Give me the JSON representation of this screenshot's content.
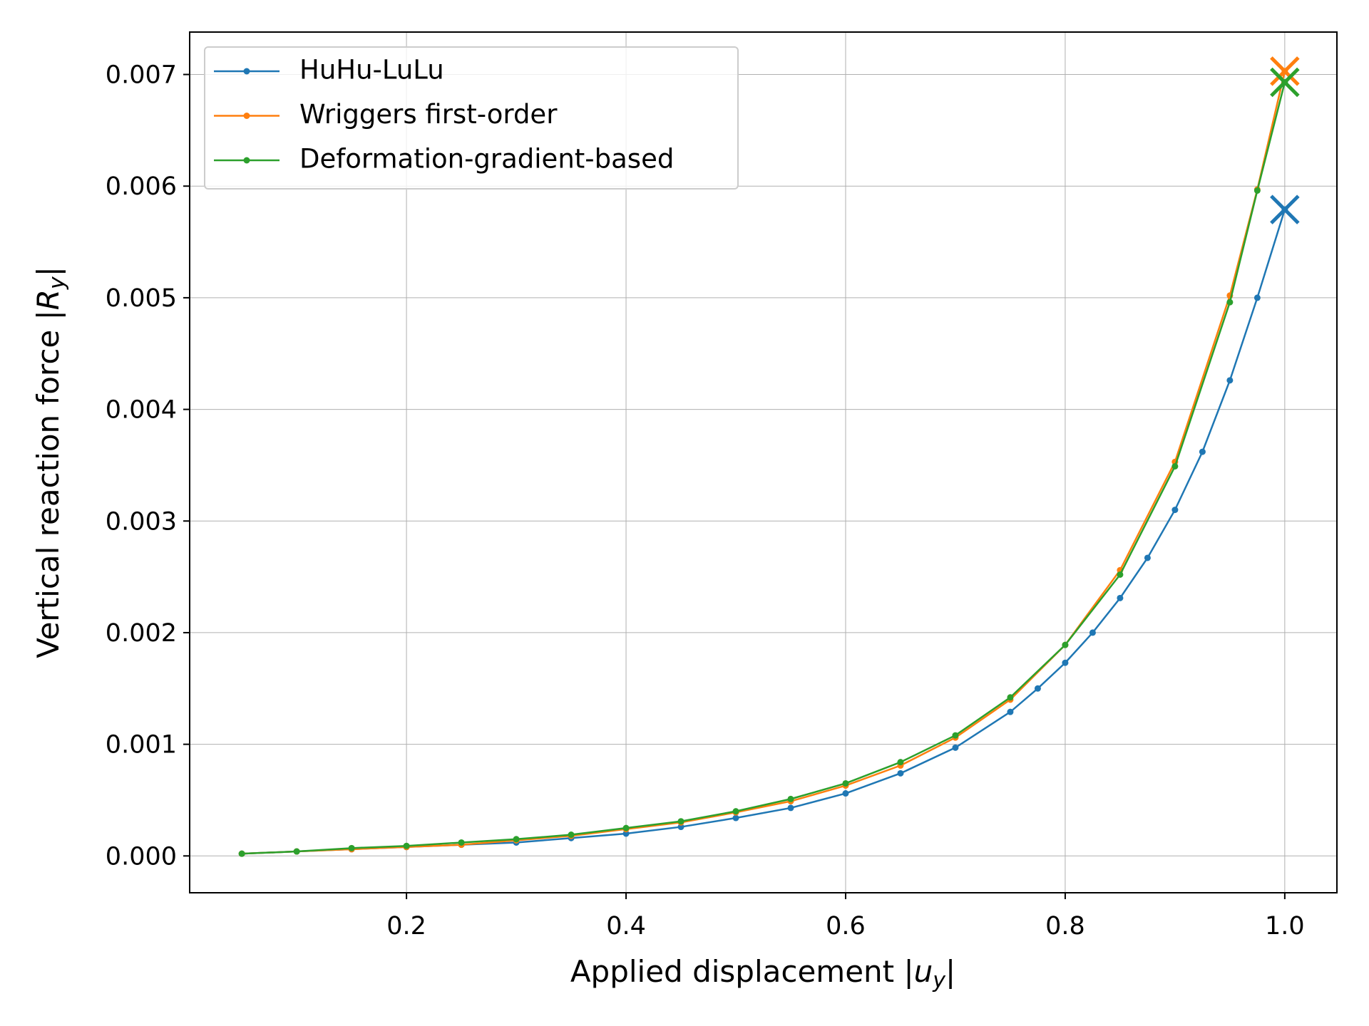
{
  "chart_data": {
    "type": "line",
    "xlabel": [
      "Applied displacement |",
      "u",
      "y",
      "|"
    ],
    "ylabel": [
      "Vertical reaction force |",
      "R",
      "y",
      "|"
    ],
    "xlim": [
      0.0025,
      1.0475
    ],
    "ylim": [
      -0.00033,
      0.00738
    ],
    "xticks": [
      0.2,
      0.4,
      0.6,
      0.8,
      {
        "value": 1,
        "label": "1.0"
      }
    ],
    "yticks": [
      {
        "value": 0,
        "label": "0.000"
      },
      0.001,
      0.002,
      0.003,
      0.004,
      0.005,
      0.006,
      0.007
    ],
    "grid": true,
    "legend": "upper left",
    "end_marker": "x",
    "series": [
      {
        "name": "HuHu-LuLu",
        "color": "#1f77b4",
        "x": [
          0.05,
          0.1,
          0.15,
          0.2,
          0.25,
          0.3,
          0.35,
          0.4,
          0.45,
          0.5,
          0.55,
          0.6,
          0.65,
          0.7,
          0.75,
          0.775,
          0.8,
          0.825,
          0.85,
          0.875,
          0.9,
          0.925,
          0.95,
          0.975,
          1.0
        ],
        "values": [
          2e-05,
          4e-05,
          6e-05,
          8e-05,
          0.0001,
          0.00012,
          0.00016,
          0.0002,
          0.00026,
          0.00034,
          0.00043,
          0.00056,
          0.00074,
          0.00097,
          0.00129,
          0.0015,
          0.00173,
          0.002,
          0.00231,
          0.00267,
          0.0031,
          0.00362,
          0.00426,
          0.005,
          0.00579
        ]
      },
      {
        "name": "Wriggers first-order",
        "color": "#ff7f0e",
        "x": [
          0.05,
          0.1,
          0.15,
          0.2,
          0.25,
          0.3,
          0.35,
          0.4,
          0.45,
          0.5,
          0.55,
          0.6,
          0.65,
          0.7,
          0.75,
          0.8,
          0.85,
          0.9,
          0.95,
          0.975,
          1.0
        ],
        "values": [
          2e-05,
          4e-05,
          6e-05,
          8e-05,
          0.0001,
          0.00014,
          0.00018,
          0.00024,
          0.0003,
          0.00039,
          0.00049,
          0.00063,
          0.00081,
          0.00106,
          0.0014,
          0.00189,
          0.00256,
          0.00353,
          0.00502,
          0.00597,
          0.00703
        ]
      },
      {
        "name": "Deformation-gradient-based",
        "color": "#2ca02c",
        "x": [
          0.05,
          0.1,
          0.15,
          0.2,
          0.25,
          0.3,
          0.35,
          0.4,
          0.45,
          0.5,
          0.55,
          0.6,
          0.65,
          0.7,
          0.75,
          0.8,
          0.85,
          0.9,
          0.95,
          0.975,
          1.0
        ],
        "values": [
          2e-05,
          4e-05,
          7e-05,
          9e-05,
          0.00012,
          0.00015,
          0.00019,
          0.00025,
          0.00031,
          0.0004,
          0.00051,
          0.00065,
          0.00084,
          0.00108,
          0.00142,
          0.00189,
          0.00252,
          0.00349,
          0.00496,
          0.00596,
          0.00693
        ]
      }
    ]
  }
}
